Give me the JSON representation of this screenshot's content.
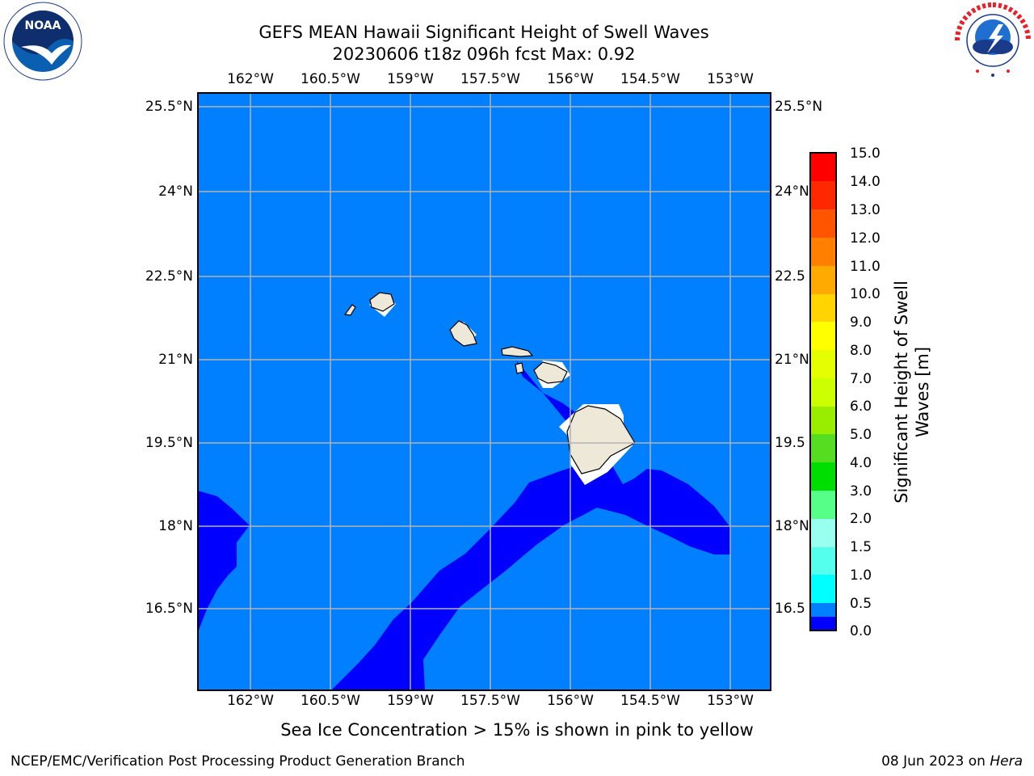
{
  "header": {
    "title_line1": "GEFS MEAN Hawaii Significant Height of Swell Waves",
    "title_line2": "20230606 t18z 096h fcst   Max: 0.92"
  },
  "logos": {
    "left": {
      "text": "NOAA",
      "ring_text": "NATIONAL OCEANIC AND ATMOSPHERIC ADMINISTRATION · U.S. DEPARTMENT OF COMMERCE",
      "icon": "noaa-seagull-logo"
    },
    "right": {
      "ring_text": "NATIONAL WEATHER SERVICE",
      "icon": "nws-lightning-cloud-logo"
    }
  },
  "map": {
    "lon_ticks": [
      "162°W",
      "160.5°W",
      "159°W",
      "157.5°W",
      "156°W",
      "154.5°W",
      "153°W"
    ],
    "lon_values": [
      -162,
      -160.5,
      -159,
      -157.5,
      -156,
      -154.5,
      -153
    ],
    "lat_ticks": [
      "25.5°N",
      "24°N",
      "22.5°N",
      "21°N",
      "19.5°N",
      "18°N",
      "16.5°N"
    ],
    "lat_values": [
      25.5,
      24,
      22.5,
      21,
      19.5,
      18,
      16.5
    ],
    "lat_ticks_right": [
      "25.5°N",
      "24°N",
      "22.5",
      "21°N",
      "19.5",
      "18°N",
      "16.5"
    ],
    "extent": {
      "lon_min": -163,
      "lon_max": -152.25,
      "lat_min": 15.25,
      "lat_max": 25.75
    },
    "colors": {
      "ocean_light": "#0080ff",
      "ocean_dark": "#0000ff",
      "land": "#ede8d7",
      "grid": "#b3b3b3",
      "mask": "#ffffff"
    }
  },
  "colorbar": {
    "title_line1": "Significant Height of Swell",
    "title_line2": "Waves [m]",
    "labels": [
      "15.0",
      "14.0",
      "13.0",
      "12.0",
      "11.0",
      "10.0",
      "9.0",
      "8.0",
      "7.0",
      "6.0",
      "5.0",
      "4.0",
      "3.0",
      "2.0",
      "1.5",
      "1.0",
      "0.5",
      "0.0"
    ],
    "colors": [
      "#ff0000",
      "#ff2800",
      "#ff5500",
      "#ff8000",
      "#ffaa00",
      "#ffd400",
      "#ffff00",
      "#e6ff00",
      "#ccff00",
      "#99ee00",
      "#55dd22",
      "#00dd00",
      "#55ff88",
      "#99ffee",
      "#55ffee",
      "#00ffff",
      "#0080ff",
      "#0000ff"
    ]
  },
  "footer": {
    "note": "Sea Ice Concentration > 15% is shown in pink to yellow",
    "credit": "NCEP/EMC/Verification Post Processing Product Generation Branch",
    "date": "08 Jun 2023 on ",
    "machine": "Hera"
  }
}
